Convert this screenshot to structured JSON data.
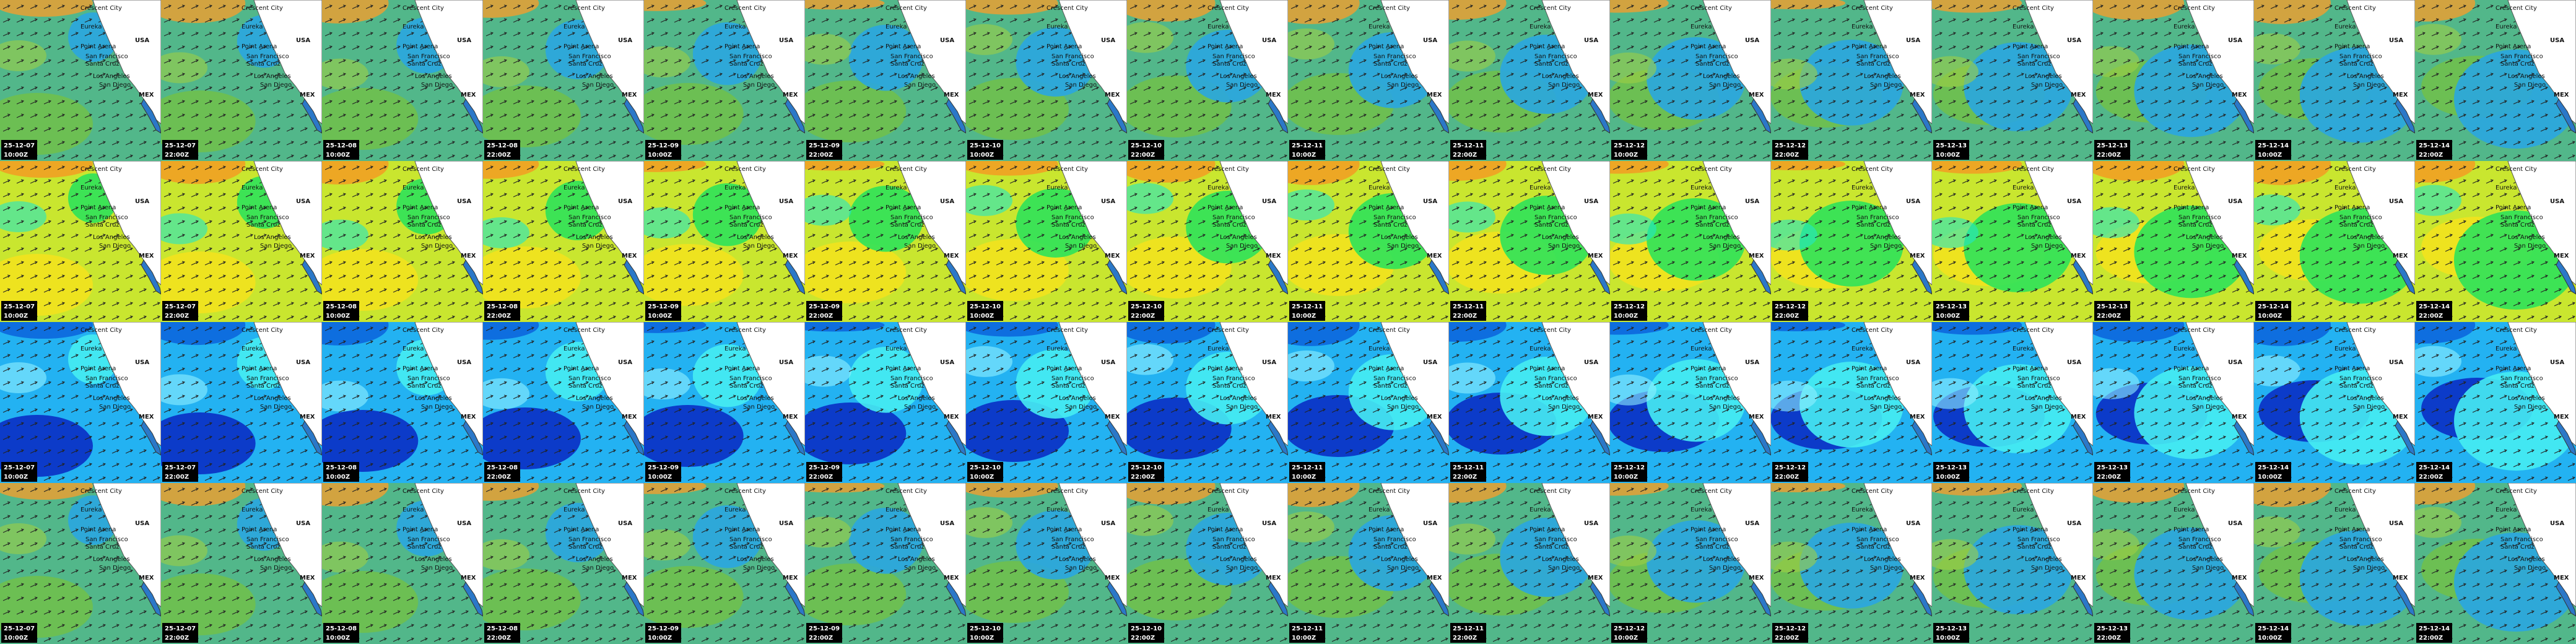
{
  "places": [
    "Crescent City",
    "Eureka",
    "Point Arena",
    "San Francisco",
    "Santa Cruz",
    "Los Angeles",
    "San Diego",
    "USA",
    "MEX"
  ],
  "columns": [
    {
      "date": "25-12-07",
      "time": "10:00Z"
    },
    {
      "date": "25-12-07",
      "time": "22:00Z"
    },
    {
      "date": "25-12-08",
      "time": "10:00Z"
    },
    {
      "date": "25-12-08",
      "time": "22:00Z"
    },
    {
      "date": "25-12-09",
      "time": "10:00Z"
    },
    {
      "date": "25-12-09",
      "time": "22:00Z"
    },
    {
      "date": "25-12-10",
      "time": "10:00Z"
    },
    {
      "date": "25-12-10",
      "time": "22:00Z"
    },
    {
      "date": "25-12-11",
      "time": "10:00Z"
    },
    {
      "date": "25-12-11",
      "time": "22:00Z"
    },
    {
      "date": "25-12-12",
      "time": "10:00Z"
    },
    {
      "date": "25-12-12",
      "time": "22:00Z"
    },
    {
      "date": "25-12-13",
      "time": "10:00Z"
    },
    {
      "date": "25-12-13",
      "time": "22:00Z"
    },
    {
      "date": "25-12-14",
      "time": "10:00Z"
    },
    {
      "date": "25-12-14",
      "time": "22:00Z"
    }
  ]
}
